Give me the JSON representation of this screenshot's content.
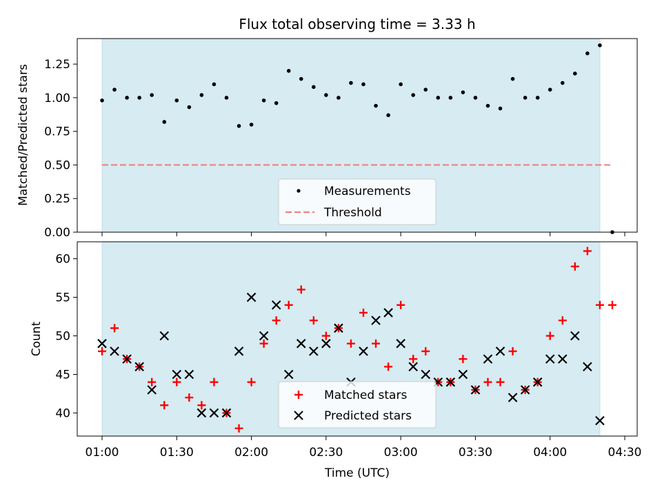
{
  "title": "Flux total observing time = 3.33 h",
  "colors": {
    "band": "#add8e6",
    "measure": "#000000",
    "threshold": "#f08080",
    "matched": "#ff0000",
    "predicted": "#000000"
  },
  "chart_data": [
    {
      "type": "scatter",
      "title": "Flux total observing time = 3.33 h",
      "ylabel": "Matched/Predicted stars",
      "xlabel": "",
      "ylim": [
        0,
        1.44
      ],
      "yticks": [
        0.0,
        0.25,
        0.5,
        0.75,
        1.0,
        1.25
      ],
      "ytick_labels": [
        "0.00",
        "0.25",
        "0.50",
        "0.75",
        "1.00",
        "1.25"
      ],
      "xlim": [
        "00:50",
        "04:35"
      ],
      "observing_window": [
        "01:00",
        "04:20"
      ],
      "threshold": 0.5,
      "legend": [
        "Measurements",
        "Threshold"
      ],
      "legend_position": "lower center",
      "series": [
        {
          "name": "Measurements",
          "marker": "dot",
          "x": [
            "01:00",
            "01:05",
            "01:10",
            "01:15",
            "01:20",
            "01:25",
            "01:30",
            "01:35",
            "01:40",
            "01:45",
            "01:50",
            "01:55",
            "02:00",
            "02:05",
            "02:10",
            "02:15",
            "02:20",
            "02:25",
            "02:30",
            "02:35",
            "02:40",
            "02:45",
            "02:50",
            "02:55",
            "03:00",
            "03:05",
            "03:10",
            "03:15",
            "03:20",
            "03:25",
            "03:30",
            "03:35",
            "03:40",
            "03:45",
            "03:50",
            "03:55",
            "04:00",
            "04:05",
            "04:10",
            "04:15",
            "04:20",
            "04:25"
          ],
          "y": [
            0.98,
            1.06,
            1.0,
            1.0,
            1.02,
            0.82,
            0.98,
            0.93,
            1.02,
            1.1,
            1.0,
            0.79,
            0.8,
            0.98,
            0.96,
            1.2,
            1.14,
            1.08,
            1.02,
            1.0,
            1.11,
            1.1,
            0.94,
            0.87,
            1.1,
            1.02,
            1.06,
            1.0,
            1.0,
            1.04,
            1.0,
            0.94,
            0.92,
            1.14,
            1.0,
            1.0,
            1.06,
            1.11,
            1.18,
            1.33,
            1.39,
            0.0
          ]
        }
      ]
    },
    {
      "type": "scatter",
      "title": "",
      "ylabel": "Count",
      "xlabel": "Time (UTC)",
      "ylim": [
        37,
        62.2
      ],
      "yticks": [
        40,
        45,
        50,
        55,
        60
      ],
      "ytick_labels": [
        "40",
        "45",
        "50",
        "55",
        "60"
      ],
      "xticks": [
        "01:00",
        "01:30",
        "02:00",
        "02:30",
        "03:00",
        "03:30",
        "04:00",
        "04:30"
      ],
      "xtick_labels": [
        "01:00",
        "01:30",
        "02:00",
        "02:30",
        "03:00",
        "03:30",
        "04:00",
        "04:30"
      ],
      "xlim": [
        "00:50",
        "04:35"
      ],
      "observing_window": [
        "01:00",
        "04:20"
      ],
      "legend": [
        "Matched stars",
        "Predicted stars"
      ],
      "legend_position": "lower center",
      "series": [
        {
          "name": "Matched stars",
          "marker": "plus",
          "x": [
            "01:00",
            "01:05",
            "01:10",
            "01:15",
            "01:20",
            "01:25",
            "01:30",
            "01:35",
            "01:40",
            "01:45",
            "01:50",
            "01:55",
            "02:00",
            "02:05",
            "02:10",
            "02:15",
            "02:20",
            "02:25",
            "02:30",
            "02:35",
            "02:40",
            "02:45",
            "02:50",
            "02:55",
            "03:00",
            "03:05",
            "03:10",
            "03:15",
            "03:20",
            "03:25",
            "03:30",
            "03:35",
            "03:40",
            "03:45",
            "03:50",
            "03:55",
            "04:00",
            "04:05",
            "04:10",
            "04:15",
            "04:20",
            "04:25"
          ],
          "y": [
            48,
            51,
            47,
            46,
            44,
            41,
            44,
            42,
            41,
            44,
            40,
            38,
            44,
            49,
            52,
            54,
            56,
            52,
            50,
            51,
            49,
            53,
            49,
            46,
            54,
            47,
            48,
            44,
            44,
            47,
            43,
            44,
            44,
            48,
            43,
            44,
            50,
            52,
            59,
            61,
            54,
            54
          ]
        },
        {
          "name": "Predicted stars",
          "marker": "x",
          "x": [
            "01:00",
            "01:05",
            "01:10",
            "01:15",
            "01:20",
            "01:25",
            "01:30",
            "01:35",
            "01:40",
            "01:45",
            "01:50",
            "01:55",
            "02:00",
            "02:05",
            "02:10",
            "02:15",
            "02:20",
            "02:25",
            "02:30",
            "02:35",
            "02:40",
            "02:45",
            "02:50",
            "02:55",
            "03:00",
            "03:05",
            "03:10",
            "03:15",
            "03:20",
            "03:25",
            "03:30",
            "03:35",
            "03:40",
            "03:45",
            "03:50",
            "03:55",
            "04:00",
            "04:05",
            "04:10",
            "04:15",
            "04:20"
          ],
          "y": [
            49,
            48,
            47,
            46,
            43,
            50,
            45,
            45,
            40,
            40,
            40,
            48,
            55,
            50,
            54,
            45,
            49,
            48,
            49,
            51,
            44,
            48,
            52,
            53,
            49,
            46,
            45,
            44,
            44,
            45,
            43,
            47,
            48,
            42,
            43,
            44,
            47,
            47,
            50,
            46,
            39
          ]
        }
      ]
    }
  ]
}
